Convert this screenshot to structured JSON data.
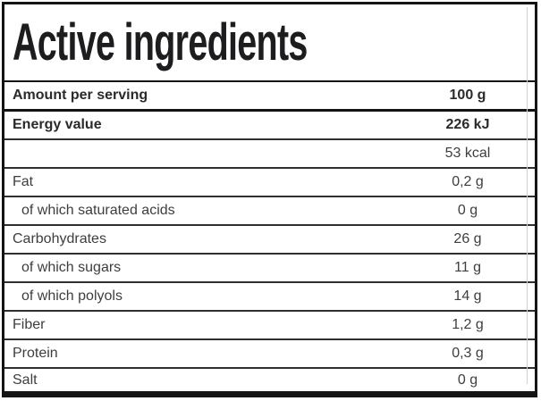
{
  "title": "Active ingredients",
  "table": {
    "header": {
      "label": "Amount per serving",
      "value": "100 g"
    },
    "rows": [
      {
        "label": "Energy value",
        "value": "226 kJ",
        "bold": true,
        "indent": false
      },
      {
        "label": "",
        "value": "53 kcal",
        "bold": false,
        "indent": false
      },
      {
        "label": "Fat",
        "value": "0,2 g",
        "bold": false,
        "indent": false
      },
      {
        "label": "of which saturated acids",
        "value": "0 g",
        "bold": false,
        "indent": true
      },
      {
        "label": "Carbohydrates",
        "value": "26 g",
        "bold": false,
        "indent": false
      },
      {
        "label": "of which sugars",
        "value": "11 g",
        "bold": false,
        "indent": true
      },
      {
        "label": "of which polyols",
        "value": "14 g",
        "bold": false,
        "indent": true
      },
      {
        "label": "Fiber",
        "value": "1,2 g",
        "bold": false,
        "indent": false
      },
      {
        "label": "Protein",
        "value": "0,3 g",
        "bold": false,
        "indent": false
      },
      {
        "label": "Salt",
        "value": "0 g",
        "bold": false,
        "indent": false
      }
    ]
  },
  "colors": {
    "border": "#141414",
    "divider": "#2f2f2f",
    "text_regular": "#3e3e3e",
    "text_bold": "#2a2a2c",
    "title": "#1d1d1f",
    "background": "#ffffff",
    "column_separator": "#d2d2d2"
  }
}
